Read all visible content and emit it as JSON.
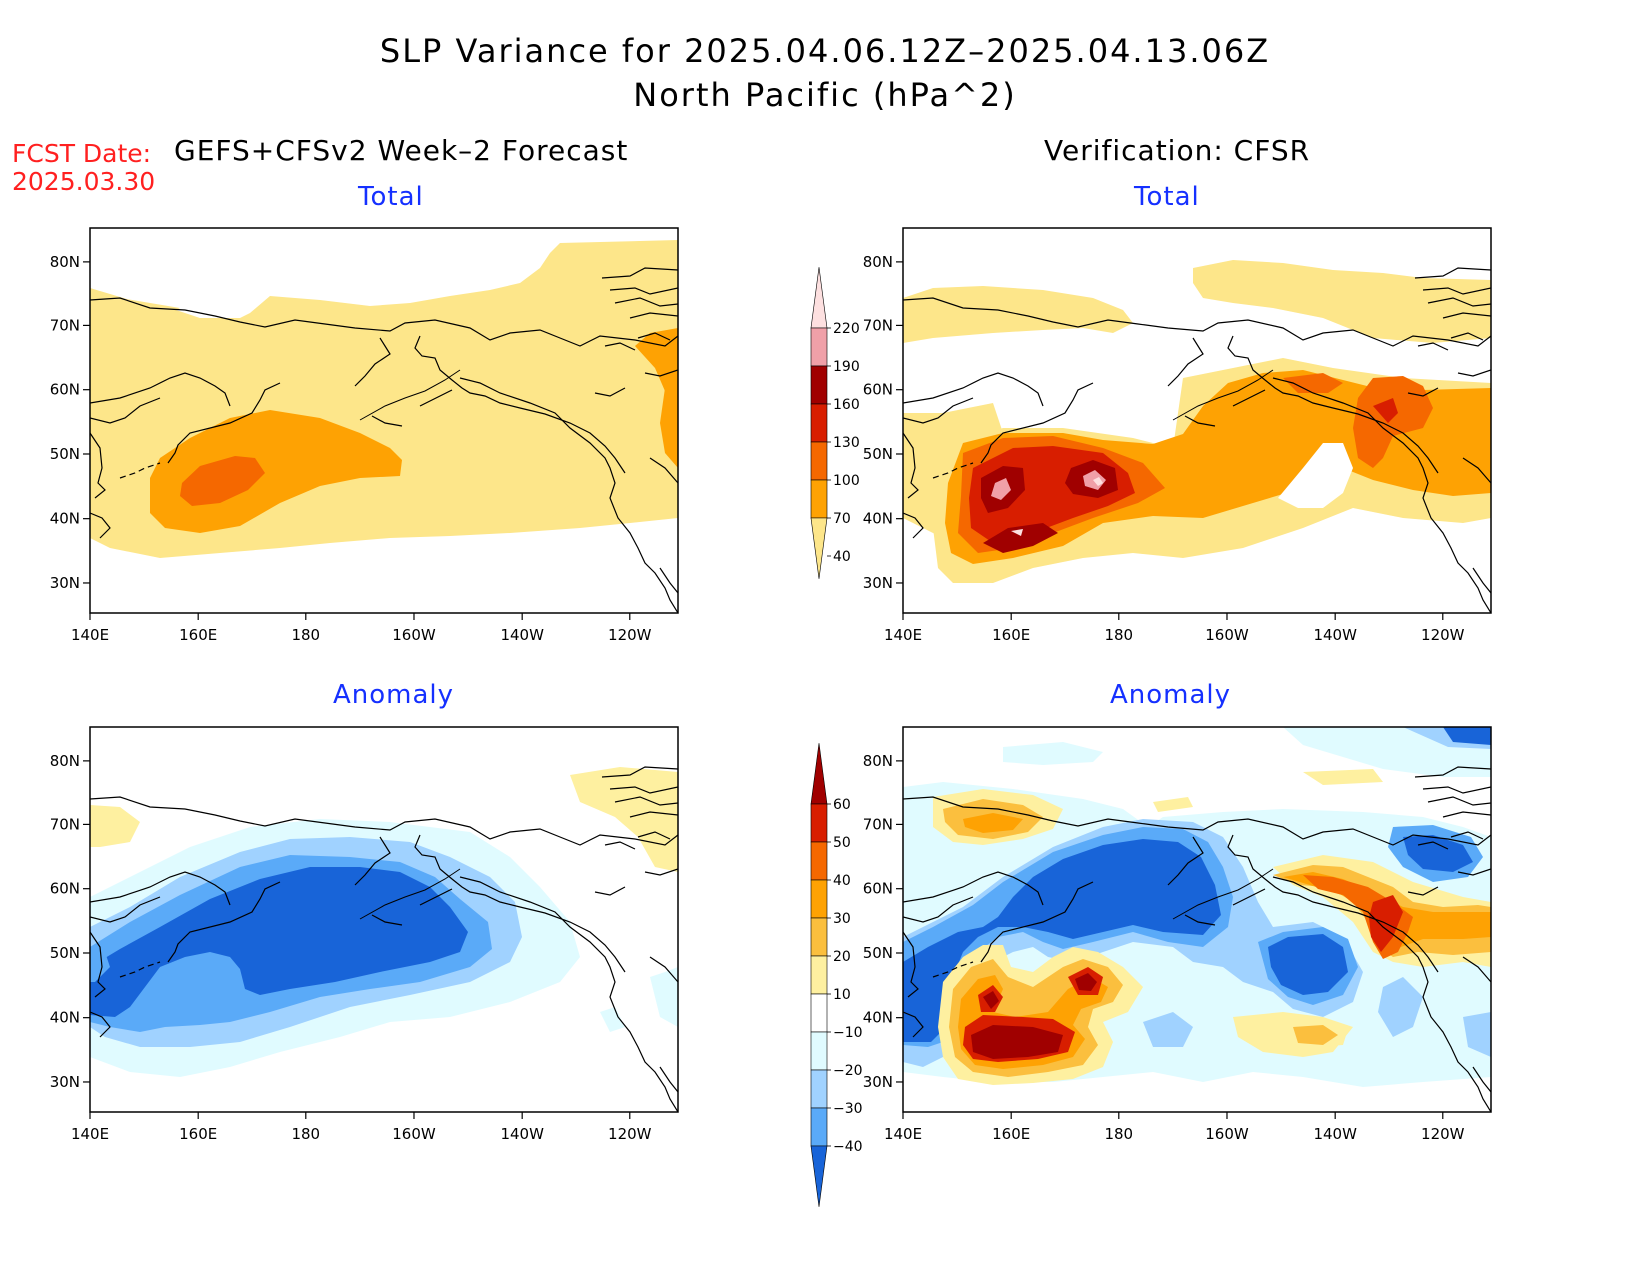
{
  "title": "SLP Variance for 2025.04.06.12Z–2025.04.13.06Z",
  "subtitle": "North Pacific (hPa^2)",
  "fcst_label": "FCST Date:",
  "fcst_date": "2025.03.30",
  "left_header": "GEFS+CFSv2 Week–2 Forecast",
  "right_header": "Verification: CFSR",
  "panels": {
    "tl": {
      "title": "Total"
    },
    "tr": {
      "title": "Total"
    },
    "bl": {
      "title": "Anomaly"
    },
    "br": {
      "title": "Anomaly"
    }
  },
  "axes": {
    "x_ticks": [
      "140E",
      "160E",
      "180",
      "160W",
      "140W",
      "120W"
    ],
    "y_ticks": [
      "80N",
      "70N",
      "60N",
      "50N",
      "40N",
      "30N"
    ]
  },
  "colorbar_total": {
    "labels": [
      "220",
      "190",
      "160",
      "130",
      "100",
      "70",
      "40"
    ],
    "colors": [
      "#fde0e0",
      "#f0a0a8",
      "#a00000",
      "#d81e00",
      "#f56800",
      "#fea203",
      "#fde68a"
    ]
  },
  "colorbar_anomaly": {
    "labels": [
      "60",
      "50",
      "40",
      "30",
      "20",
      "10",
      "−10",
      "−20",
      "−30",
      "−40"
    ],
    "colors": [
      "#a00000",
      "#d81e00",
      "#f56800",
      "#fea203",
      "#fbbf3e",
      "#fef0a0",
      "#ffffff",
      "#e0fbff",
      "#a0d2ff",
      "#5aaaf8",
      "#1864d8"
    ]
  }
}
